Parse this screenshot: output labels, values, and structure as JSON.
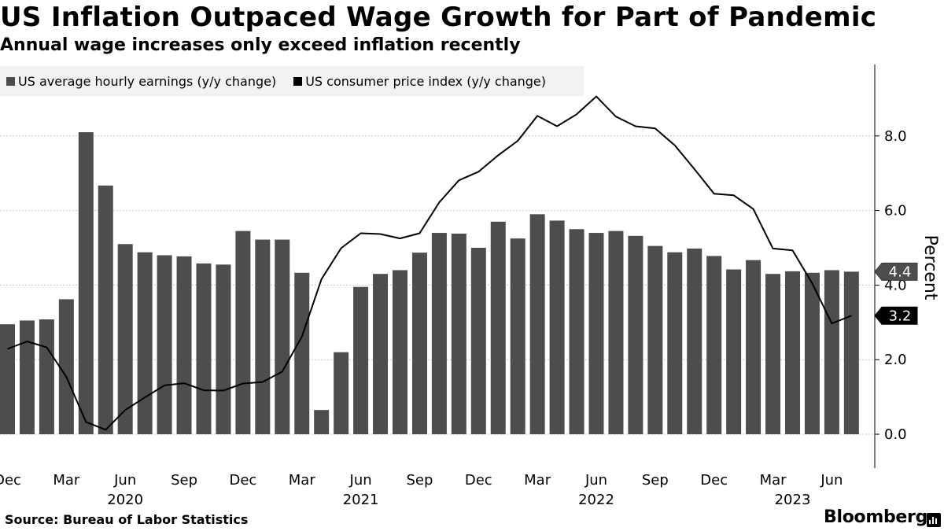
{
  "title": "US Inflation Outpaced Wage Growth for Part of Pandemic",
  "subtitle": "Annual wage increases only exceed inflation recently",
  "legend": {
    "wages_label": "US average hourly earnings (y/y change)",
    "cpi_label": "US consumer price index (y/y change)"
  },
  "source": "Source: Bureau of Labor Statistics",
  "brand": "Bloomberg",
  "colors": {
    "bar": "#4d4d4d",
    "line": "#000000",
    "grid": "#c8c8c8"
  },
  "chart_data": {
    "type": "bar+line",
    "title": "US Inflation Outpaced Wage Growth for Part of Pandemic",
    "subtitle": "Annual wage increases only exceed inflation recently",
    "ylabel": "Percent",
    "ylim": [
      -0.9,
      9.9
    ],
    "yticks": [
      "0.0",
      "2.0",
      "4.0",
      "6.0",
      "8.0"
    ],
    "ytick_values": [
      0,
      2,
      4,
      6,
      8
    ],
    "categories": [
      "Dec 2019",
      "Jan 2020",
      "Feb 2020",
      "Mar 2020",
      "Apr 2020",
      "May 2020",
      "Jun 2020",
      "Jul 2020",
      "Aug 2020",
      "Sep 2020",
      "Oct 2020",
      "Nov 2020",
      "Dec 2020",
      "Jan 2021",
      "Feb 2021",
      "Mar 2021",
      "Apr 2021",
      "May 2021",
      "Jun 2021",
      "Jul 2021",
      "Aug 2021",
      "Sep 2021",
      "Oct 2021",
      "Nov 2021",
      "Dec 2021",
      "Jan 2022",
      "Feb 2022",
      "Mar 2022",
      "Apr 2022",
      "May 2022",
      "Jun 2022",
      "Jul 2022",
      "Aug 2022",
      "Sep 2022",
      "Oct 2022",
      "Nov 2022",
      "Dec 2022",
      "Jan 2023",
      "Feb 2023",
      "Mar 2023",
      "Apr 2023",
      "May 2023",
      "Jun 2023",
      "Jul 2023"
    ],
    "x_tick_labels": [
      {
        "index": 0,
        "label": "Dec"
      },
      {
        "index": 3,
        "label": "Mar"
      },
      {
        "index": 6,
        "label": "Jun"
      },
      {
        "index": 9,
        "label": "Sep"
      },
      {
        "index": 12,
        "label": "Dec"
      },
      {
        "index": 15,
        "label": "Mar"
      },
      {
        "index": 18,
        "label": "Jun"
      },
      {
        "index": 21,
        "label": "Sep"
      },
      {
        "index": 24,
        "label": "Dec"
      },
      {
        "index": 27,
        "label": "Mar"
      },
      {
        "index": 30,
        "label": "Jun"
      },
      {
        "index": 33,
        "label": "Sep"
      },
      {
        "index": 36,
        "label": "Dec"
      },
      {
        "index": 39,
        "label": "Mar"
      },
      {
        "index": 42,
        "label": "Jun"
      }
    ],
    "x_year_labels": [
      {
        "index": 6,
        "label": "2020"
      },
      {
        "index": 18,
        "label": "2021"
      },
      {
        "index": 30,
        "label": "2022"
      },
      {
        "index": 40,
        "label": "2023"
      }
    ],
    "series": [
      {
        "name": "US average hourly earnings (y/y change)",
        "type": "bar",
        "values": [
          2.95,
          3.05,
          3.08,
          3.62,
          8.1,
          6.67,
          5.1,
          4.88,
          4.8,
          4.77,
          4.58,
          4.55,
          5.45,
          5.22,
          5.22,
          4.33,
          0.65,
          2.2,
          3.95,
          4.3,
          4.4,
          4.87,
          5.4,
          5.38,
          5.0,
          5.7,
          5.25,
          5.9,
          5.73,
          5.5,
          5.4,
          5.45,
          5.32,
          5.05,
          4.88,
          4.98,
          4.78,
          4.42,
          4.67,
          4.3,
          4.37,
          4.33,
          4.4,
          4.36
        ]
      },
      {
        "name": "US consumer price index (y/y change)",
        "type": "line",
        "values": [
          2.29,
          2.49,
          2.33,
          1.54,
          0.33,
          0.12,
          0.65,
          0.99,
          1.31,
          1.37,
          1.18,
          1.17,
          1.36,
          1.4,
          1.68,
          2.62,
          4.16,
          4.99,
          5.39,
          5.37,
          5.25,
          5.39,
          6.22,
          6.81,
          7.04,
          7.48,
          7.87,
          8.54,
          8.26,
          8.58,
          9.06,
          8.52,
          8.26,
          8.2,
          7.75,
          7.11,
          6.45,
          6.41,
          6.04,
          4.98,
          4.93,
          4.05,
          2.97,
          3.18
        ]
      }
    ],
    "last_value_labels": {
      "wages": "4.4",
      "cpi": "3.2"
    }
  }
}
